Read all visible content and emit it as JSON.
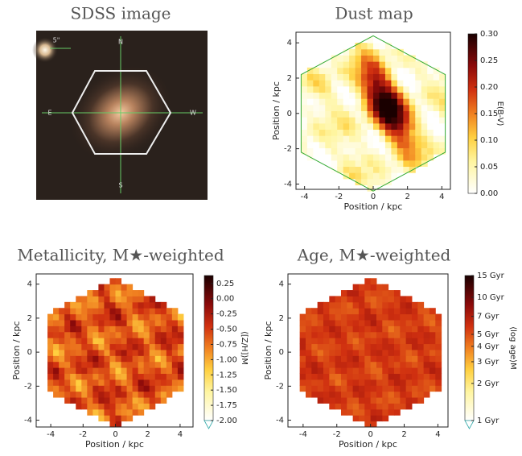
{
  "chart_data": [
    {
      "type": "image",
      "title": "SDSS image",
      "annotations": [
        "5\"",
        "N",
        "E",
        "W",
        "S"
      ]
    },
    {
      "type": "heatmap",
      "title": "Dust map",
      "xlabel": "Position / kpc",
      "ylabel": "Position / kpc",
      "xlim": [
        -4.5,
        4.5
      ],
      "xticks": [
        -4,
        -2,
        0,
        2,
        4
      ],
      "ylim": [
        -4.3,
        4.6
      ],
      "yticks": [
        -4,
        -2,
        0,
        2,
        4
      ],
      "colorbar": {
        "label": "E(B-V)",
        "lim": [
          0,
          0.3
        ],
        "ticks": [
          {
            "value": 0,
            "label": "0.00"
          },
          0.05,
          {
            "value": 0.1,
            "label": "0.10"
          },
          0.15,
          {
            "value": 0.2,
            "label": "0.20"
          },
          0.25,
          {
            "value": 0.3,
            "label": "0.30"
          }
        ]
      }
    },
    {
      "type": "heatmap",
      "title": "Metallicity, M★-weighted",
      "xlabel": "Position / kpc",
      "ylabel": "Position / kpc",
      "xlim": [
        -4.9,
        4.8
      ],
      "xticks": [
        -4,
        -2,
        0,
        2,
        4
      ],
      "ylim": [
        -4.4,
        4.6
      ],
      "yticks": [
        -4,
        -2,
        0,
        2,
        4
      ],
      "colorbar": {
        "label": "⟨[Z/H]⟩M",
        "lim": [
          -2.0,
          0.38
        ],
        "extend": "min",
        "ticks": [
          0.25,
          {
            "value": 0,
            "label": "0.00"
          },
          -0.25,
          {
            "value": -0.5,
            "label": "-0.50"
          },
          -0.75,
          {
            "value": -1,
            "label": "-1.00"
          },
          -1.25,
          {
            "value": -1.5,
            "label": "-1.50"
          },
          -1.75,
          {
            "value": -2,
            "label": "-2.00"
          }
        ]
      }
    },
    {
      "type": "heatmap",
      "title": "Age, M★-weighted",
      "xlabel": "Position / kpc",
      "ylabel": "Position / kpc",
      "xlim": [
        -4.9,
        4.6
      ],
      "xticks": [
        -4,
        -2,
        0,
        2,
        4
      ],
      "ylim": [
        -4.4,
        4.6
      ],
      "yticks": [
        -4,
        -2,
        0,
        2,
        4
      ],
      "colorbar": {
        "label": "⟨log age⟩M",
        "lim": [
          1,
          15
        ],
        "log": true,
        "extend": "min",
        "ticks": [
          {
            "value": 1,
            "label": "1 Gyr"
          },
          {
            "value": 2,
            "label": "2 Gyr"
          },
          {
            "value": 3,
            "label": "3 Gyr"
          },
          {
            "value": 4,
            "label": "4 Gyr"
          },
          {
            "value": 5,
            "label": "5 Gyr"
          },
          {
            "value": 7,
            "label": "7 Gyr"
          },
          {
            "value": 10,
            "label": "10 Gyr"
          },
          {
            "value": 15,
            "label": "15 Gyr"
          }
        ]
      }
    }
  ]
}
